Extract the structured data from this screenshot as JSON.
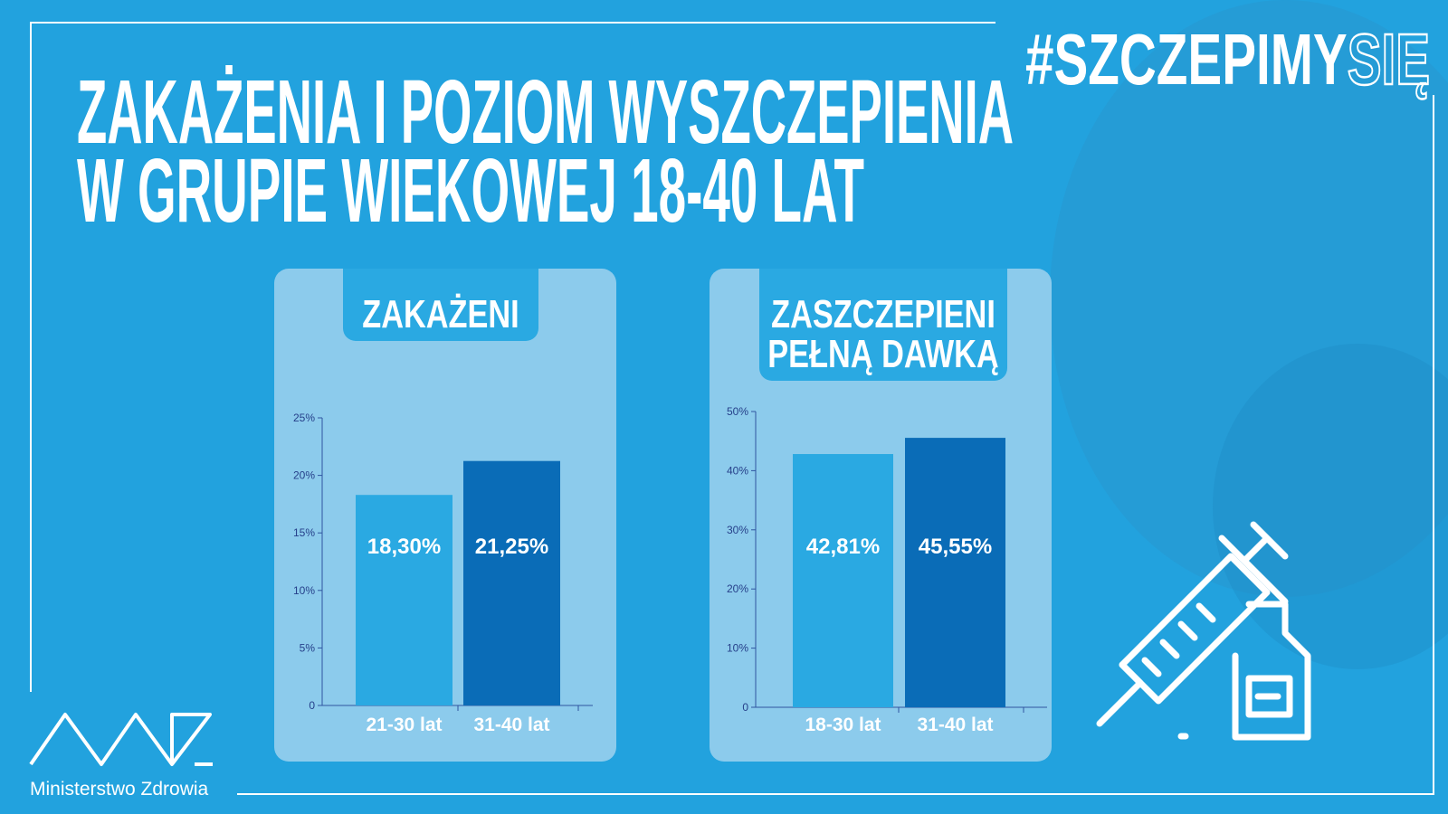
{
  "header": {
    "title": [
      "ZAKAŻENIA I POZIOM WYSZCZEPIENIA",
      "W GRUPIE WIEKOWEJ 18-40 LAT"
    ],
    "hashtag": [
      "#SZCZEPIMY",
      "SIĘ"
    ]
  },
  "logo": "Ministerstwo Zdrowia",
  "chart_data": [
    {
      "type": "bar",
      "title": [
        "ZAKAŻENI"
      ],
      "categories": [
        "21-30 lat",
        "31-40 lat"
      ],
      "values": [
        18.3,
        21.25
      ],
      "value_labels": [
        "18,30%",
        "21,25%"
      ],
      "colors": [
        "#2aa9e2",
        "#0a6cb7"
      ],
      "ylim": [
        0,
        25
      ],
      "yticks": [
        0,
        {
          "value": 5,
          "label": "5%"
        },
        {
          "value": 10,
          "label": "10%"
        },
        {
          "value": 15,
          "label": "15%"
        },
        {
          "value": 20,
          "label": "20%"
        },
        {
          "value": 25,
          "label": "25%"
        }
      ]
    },
    {
      "type": "bar",
      "title": [
        "ZASZCZEPIENI",
        "PEŁNĄ DAWKĄ"
      ],
      "categories": [
        "18-30 lat",
        "31-40 lat"
      ],
      "values": [
        42.81,
        45.55
      ],
      "value_labels": [
        "42,81%",
        "45,55%"
      ],
      "colors": [
        "#2aa9e2",
        "#0a6cb7"
      ],
      "ylim": [
        0,
        50
      ],
      "yticks": [
        0,
        {
          "value": 10,
          "label": "10%"
        },
        {
          "value": 20,
          "label": "20%"
        },
        {
          "value": 30,
          "label": "30%"
        },
        {
          "value": 40,
          "label": "40%"
        },
        {
          "value": 50,
          "label": "50%"
        }
      ]
    }
  ]
}
